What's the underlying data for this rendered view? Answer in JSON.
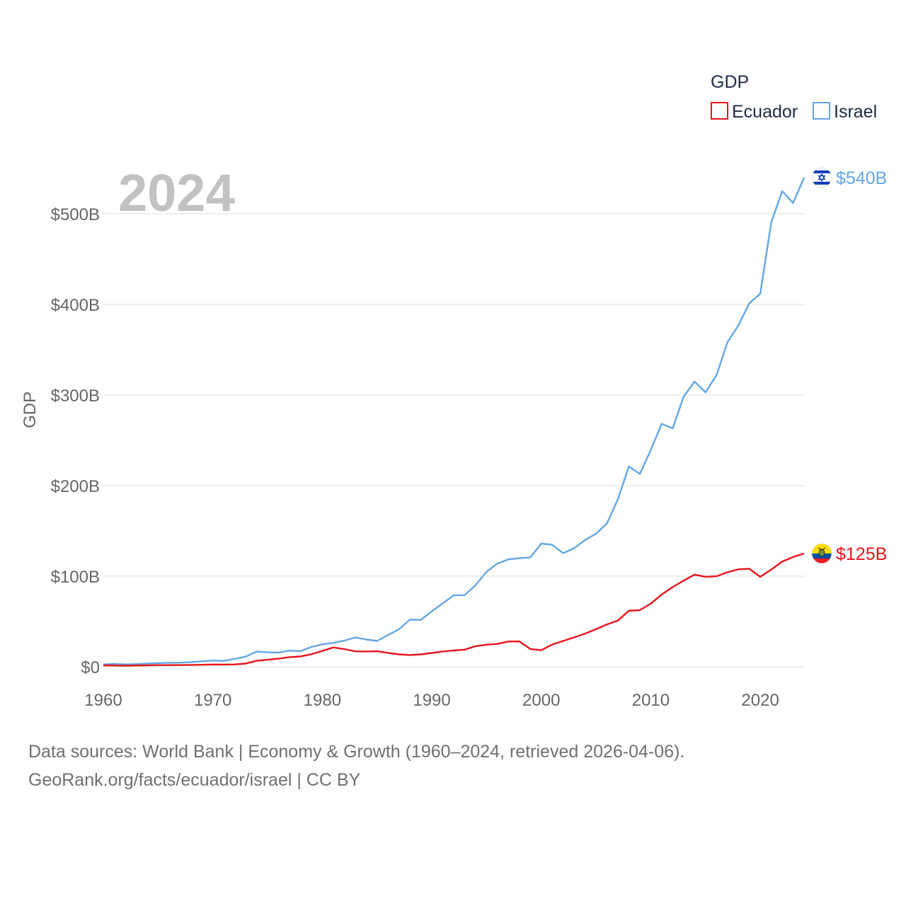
{
  "chart_data": {
    "type": "line",
    "title": "",
    "current_year_label": "2024",
    "xlabel": "",
    "ylabel": "GDP",
    "xlim": [
      1960,
      2024
    ],
    "ylim": [
      0,
      550
    ],
    "x_ticks": [
      1960,
      1970,
      1980,
      1990,
      2000,
      2010,
      2020
    ],
    "x_tick_labels": [
      "1960",
      "1970",
      "1980",
      "1990",
      "2000",
      "2010",
      "2020"
    ],
    "y_ticks": [
      0,
      100,
      200,
      300,
      400,
      500
    ],
    "y_tick_labels": [
      "$0",
      "$100B",
      "$200B",
      "$300B",
      "$400B",
      "$500B"
    ],
    "grid": true,
    "legend": {
      "title": "GDP",
      "position": "top-right",
      "items": [
        {
          "label": "Ecuador",
          "color": "#e8141c"
        },
        {
          "label": "Israel",
          "color": "#63a6e6"
        }
      ]
    },
    "x": [
      1960,
      1961,
      1962,
      1963,
      1964,
      1965,
      1966,
      1967,
      1968,
      1969,
      1970,
      1971,
      1972,
      1973,
      1974,
      1975,
      1976,
      1977,
      1978,
      1979,
      1980,
      1981,
      1982,
      1983,
      1984,
      1985,
      1986,
      1987,
      1988,
      1989,
      1990,
      1991,
      1992,
      1993,
      1994,
      1995,
      1996,
      1997,
      1998,
      1999,
      2000,
      2001,
      2002,
      2003,
      2004,
      2005,
      2006,
      2007,
      2008,
      2009,
      2010,
      2011,
      2012,
      2013,
      2014,
      2015,
      2016,
      2017,
      2018,
      2019,
      2020,
      2021,
      2022,
      2023,
      2024
    ],
    "series": [
      {
        "name": "Israel",
        "color": "#63a6e6",
        "end_label": "$540B",
        "flag_icon": "israel-flag-icon",
        "values": [
          2.6,
          3.2,
          2.6,
          3.0,
          3.6,
          4.1,
          4.4,
          4.5,
          5.1,
          5.9,
          6.9,
          6.5,
          8.6,
          11.2,
          16.7,
          15.9,
          15.6,
          17.8,
          17.2,
          21.9,
          24.7,
          26.4,
          28.8,
          32.4,
          30.1,
          28.5,
          35.0,
          41.4,
          52.0,
          51.8,
          61.2,
          70.1,
          78.8,
          79.1,
          90.1,
          104.9,
          114.0,
          118.6,
          119.8,
          120.8,
          135.9,
          134.6,
          125.3,
          130.9,
          139.9,
          146.8,
          158.4,
          184.9,
          221.1,
          212.8,
          239.3,
          268.2,
          263.1,
          298.1,
          314.8,
          302.9,
          321.9,
          358.2,
          376.7,
          401.3,
          411.7,
          490.4,
          525.0,
          511.9,
          540.0
        ]
      },
      {
        "name": "Ecuador",
        "color": "#e8141c",
        "end_label": "$125B",
        "flag_icon": "ecuador-flag-icon",
        "values": [
          1.6,
          1.4,
          1.2,
          1.4,
          1.6,
          1.8,
          1.8,
          1.9,
          2.0,
          2.2,
          2.5,
          2.4,
          2.6,
          3.5,
          6.6,
          7.7,
          8.9,
          10.6,
          11.4,
          13.8,
          17.5,
          21.3,
          19.5,
          17.0,
          16.9,
          17.1,
          15.3,
          13.7,
          13.0,
          13.7,
          15.2,
          16.9,
          18.0,
          18.9,
          22.7,
          24.4,
          25.2,
          27.9,
          28.0,
          19.6,
          18.3,
          24.5,
          28.5,
          32.4,
          36.6,
          41.5,
          46.8,
          51.0,
          61.8,
          62.5,
          69.6,
          79.8,
          88.0,
          95.1,
          101.7,
          99.3,
          99.9,
          104.3,
          107.6,
          108.1,
          99.3,
          107.2,
          116.1,
          121.1,
          125.0
        ]
      }
    ]
  },
  "footer": {
    "source_line1": "Data sources: World Bank | Economy & Growth (1960–2024, retrieved 2026-04-06).",
    "source_line2": "GeoRank.org/facts/ecuador/israel | CC BY"
  }
}
